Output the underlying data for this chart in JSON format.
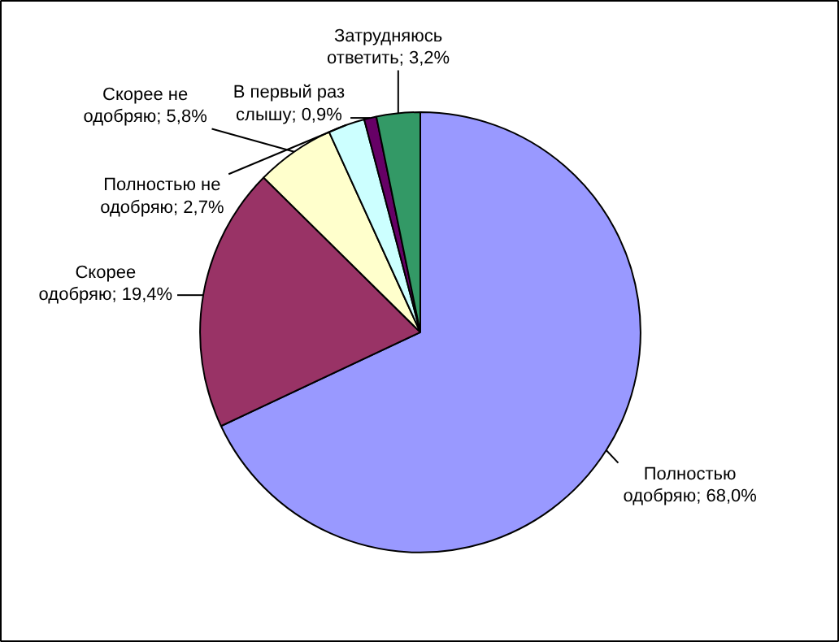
{
  "chart_data": {
    "type": "pie",
    "categories": [
      "Полностью одобряю",
      "Скорее одобряю",
      "Скорее не одобряю",
      "Полностью не одобряю",
      "В первый раз слышу",
      "Затрудняюсь ответить"
    ],
    "values": [
      68.0,
      19.4,
      5.8,
      2.7,
      0.9,
      3.2
    ],
    "colors": [
      "#9999ff",
      "#993366",
      "#ffffcc",
      "#ccffff",
      "#660066",
      "#339966"
    ],
    "value_labels": [
      "68,0%",
      "19,4%",
      "5,8%",
      "2,7%",
      "0,9%",
      "3,2%"
    ]
  }
}
